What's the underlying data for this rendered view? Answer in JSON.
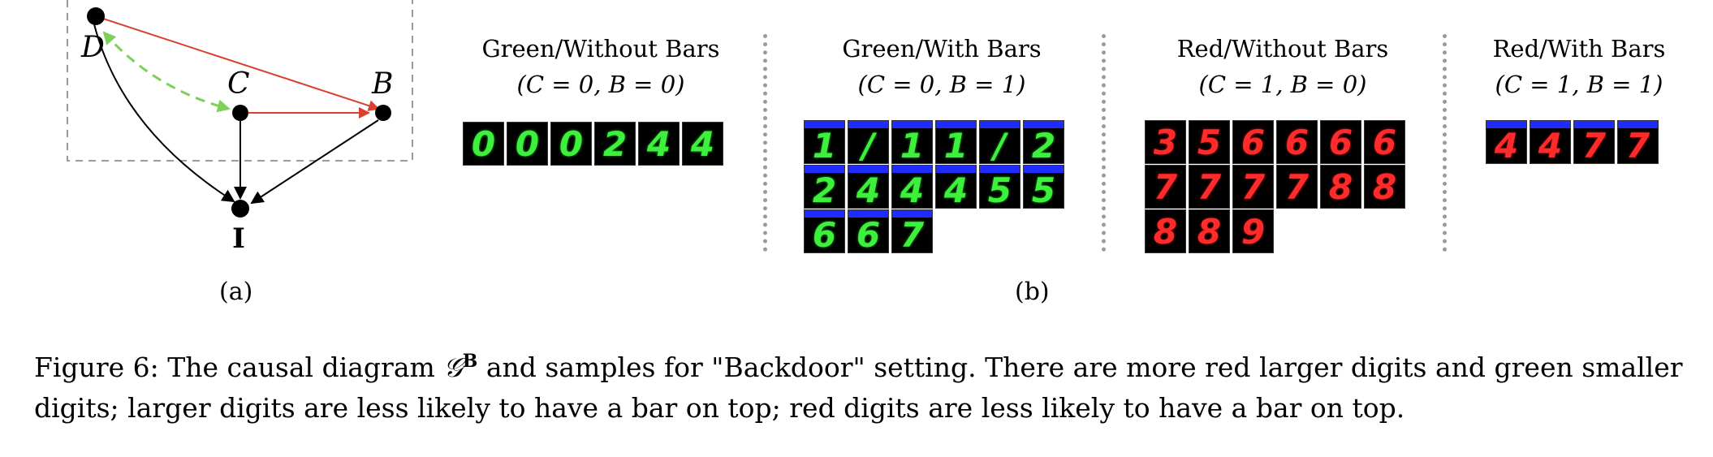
{
  "diagram": {
    "nodes": {
      "D": "D",
      "C": "C",
      "B": "B",
      "I": "I"
    },
    "colors": {
      "red_edge": "#d9402e",
      "green_edge": "#7fd05a",
      "black_edge": "#000000",
      "box_dash": "#9a9a9a"
    }
  },
  "panel_labels": {
    "a": "(a)",
    "b": "(b)"
  },
  "groups": [
    {
      "title": "Green/Without Bars",
      "condition": "(C = 0, B = 0)",
      "color": "green",
      "bars": false,
      "digits": [
        "0",
        "0",
        "0",
        "2",
        "4",
        "4"
      ]
    },
    {
      "title": "Green/With Bars",
      "condition": "(C = 0, B = 1)",
      "color": "green",
      "bars": true,
      "digits": [
        "1",
        "/",
        "1",
        "1",
        "/",
        "2",
        "2",
        "4",
        "4",
        "4",
        "5",
        "5",
        "6",
        "6",
        "7"
      ]
    },
    {
      "title": "Red/Without Bars",
      "condition": "(C = 1, B = 0)",
      "color": "red",
      "bars": false,
      "digits": [
        "3",
        "5",
        "6",
        "6",
        "6",
        "6",
        "7",
        "7",
        "7",
        "7",
        "8",
        "8",
        "8",
        "8",
        "9"
      ]
    },
    {
      "title": "Red/With Bars",
      "condition": "(C = 1, B = 1)",
      "color": "red",
      "bars": true,
      "digits": [
        "4",
        "4",
        "7",
        "7"
      ]
    }
  ],
  "caption": {
    "prefix": "Figure 6: The causal diagram ",
    "symbol": "𝒢",
    "superscript": "B",
    "suffix": " and samples for \"Backdoor\" setting. There are more red larger digits and green smaller digits; larger digits are less likely to have a bar on top; red digits are less likely to have a bar on top."
  }
}
